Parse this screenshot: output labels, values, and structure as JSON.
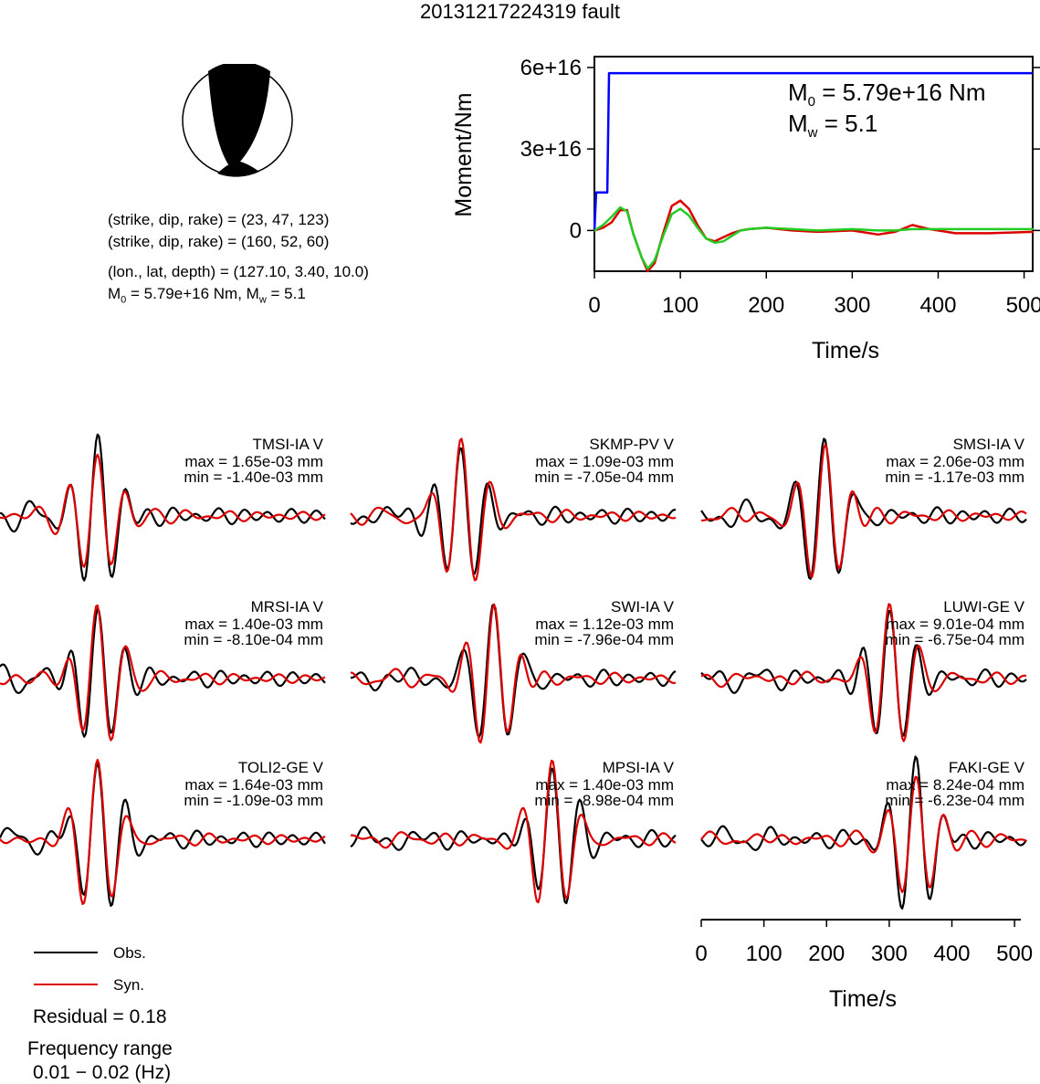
{
  "title": "20131217224319 fault",
  "mechanism": {
    "line1": "(strike, dip, rake) = (23, 47, 123)",
    "line2": "(strike, dip, rake) = (160, 52, 60)",
    "line3": "(lon., lat, depth) = (127.10, 3.40, 10.0)",
    "m0_prefix": "M",
    "m0_sub": "0",
    "m0_mid": " = 5.79e+16 Nm, M",
    "mw_sub": "w",
    "mw_tail": " = 5.1"
  },
  "moment_plot": {
    "ylabel": "Moment/Nm",
    "xlabel": "Time/s",
    "m0_label": "M",
    "m0_sub": "0",
    "m0_value": " = 5.79e+16 Nm",
    "mw_label": "M",
    "mw_sub": "w",
    "mw_value": " = 5.1",
    "colors": {
      "moment": "#0000ff",
      "stf_red": "#dd0000",
      "stf_green": "#22cc22"
    }
  },
  "chart_data": {
    "type": "line",
    "title": "20131217224319 fault",
    "moment_rate": {
      "xlabel": "Time/s",
      "ylabel": "Moment/Nm",
      "xlim": [
        0,
        510
      ],
      "ylim": [
        -1.5e+16,
        6.4e+16
      ],
      "xticks": [
        0,
        100,
        200,
        300,
        400,
        500
      ],
      "yticks": [
        0,
        3e+16,
        6e+16
      ],
      "ytick_labels": [
        "0",
        "3e+16",
        "6e+16"
      ],
      "series": [
        {
          "color": "#0000ff",
          "x": [
            0,
            2,
            4,
            15,
            17,
            510
          ],
          "y": [
            0,
            1.4e+16,
            1.4e+16,
            1.4e+16,
            5.79e+16,
            5.79e+16
          ]
        },
        {
          "color": "#dd0000",
          "x": [
            0,
            10,
            20,
            30,
            38,
            45,
            55,
            62,
            70,
            80,
            90,
            100,
            110,
            120,
            130,
            140,
            150,
            160,
            170,
            180,
            200,
            230,
            260,
            300,
            330,
            350,
            370,
            390,
            420,
            460,
            510
          ],
          "y": [
            0,
            1000000000000000.0,
            3000000000000000.0,
            7500000000000000.0,
            7500000000000000.0,
            -1000000000000000.0,
            -1e+16,
            -1.5e+16,
            -1.2e+16,
            -1000000000000000.0,
            9000000000000000.0,
            1.1e+16,
            8000000000000000.0,
            2000000000000000.0,
            -3000000000000000.0,
            -4000000000000000.0,
            -2500000000000000.0,
            -1000000000000000.0,
            0,
            500000000000000.0,
            1000000000000000.0,
            0,
            -500000000000000.0,
            0,
            -1500000000000000.0,
            -500000000000000.0,
            2000000000000000.0,
            500000000000000.0,
            -1000000000000000.0,
            -1000000000000000.0,
            -500000000000000.0
          ]
        },
        {
          "color": "#22cc22",
          "x": [
            0,
            10,
            20,
            30,
            38,
            45,
            55,
            62,
            70,
            80,
            90,
            100,
            110,
            120,
            130,
            140,
            150,
            160,
            170,
            180,
            200,
            230,
            260,
            300,
            330,
            350,
            370,
            390,
            420,
            460,
            510
          ],
          "y": [
            0,
            2000000000000000.0,
            5000000000000000.0,
            8500000000000000.0,
            7000000000000000.0,
            -1000000000000000.0,
            -1e+16,
            -1.4e+16,
            -1.1e+16,
            -2000000000000000.0,
            6000000000000000.0,
            8000000000000000.0,
            5500000000000000.0,
            1000000000000000.0,
            -3000000000000000.0,
            -4500000000000000.0,
            -4000000000000000.0,
            -2000000000000000.0,
            0,
            500000000000000.0,
            1000000000000000.0,
            500000000000000.0,
            0,
            500000000000000.0,
            0,
            0,
            500000000000000.0,
            500000000000000.0,
            500000000000000.0,
            500000000000000.0,
            500000000000000.0
          ]
        }
      ]
    },
    "waveforms": {
      "xlim": [
        0,
        510
      ],
      "xlabel": "Time/s",
      "xticks": [
        0,
        100,
        200,
        300,
        400,
        500
      ],
      "legend": [
        "Obs.",
        "Syn."
      ],
      "stations": [
        {
          "name": "TMSI-IA V",
          "max": "max = 1.65e-03 mm",
          "min": "min = -1.40e-03 mm"
        },
        {
          "name": "SKMP-PV V",
          "max": "max = 1.09e-03 mm",
          "min": "min = -7.05e-04 mm"
        },
        {
          "name": "SMSI-IA V",
          "max": "max = 2.06e-03 mm",
          "min": "min = -1.17e-03 mm"
        },
        {
          "name": "MRSI-IA V",
          "max": "max = 1.40e-03 mm",
          "min": "min = -8.10e-04 mm"
        },
        {
          "name": "SWI-IA V",
          "max": "max = 1.12e-03 mm",
          "min": "min = -7.96e-04 mm"
        },
        {
          "name": "LUWI-GE V",
          "max": "max = 9.01e-04 mm",
          "min": "min = -6.75e-04 mm"
        },
        {
          "name": "TOLI2-GE V",
          "max": "max = 1.64e-03 mm",
          "min": "min = -1.09e-03 mm"
        },
        {
          "name": "MPSI-IA V",
          "max": "max = 1.40e-03 mm",
          "min": "min = -8.98e-04 mm"
        },
        {
          "name": "FAKI-GE V",
          "max": "max = 8.24e-04 mm",
          "min": "min = -6.23e-04 mm"
        }
      ]
    }
  },
  "stations": [
    {
      "name": "TMSI-IA V",
      "max": "max = 1.65e-03 mm",
      "min": "min = -1.40e-03 mm"
    },
    {
      "name": "SKMP-PV V",
      "max": "max = 1.09e-03 mm",
      "min": "min = -7.05e-04 mm"
    },
    {
      "name": "SMSI-IA V",
      "max": "max = 2.06e-03 mm",
      "min": "min = -1.17e-03 mm"
    },
    {
      "name": "MRSI-IA V",
      "max": "max = 1.40e-03 mm",
      "min": "min = -8.10e-04 mm"
    },
    {
      "name": "SWI-IA V",
      "max": "max = 1.12e-03 mm",
      "min": "min = -7.96e-04 mm"
    },
    {
      "name": "LUWI-GE V",
      "max": "max = 9.01e-04 mm",
      "min": "min = -6.75e-04 mm"
    },
    {
      "name": "TOLI2-GE V",
      "max": "max = 1.64e-03 mm",
      "min": "min = -1.09e-03 mm"
    },
    {
      "name": "MPSI-IA V",
      "max": "max = 1.40e-03 mm",
      "min": "min = -8.98e-04 mm"
    },
    {
      "name": "FAKI-GE V",
      "max": "max = 8.24e-04 mm",
      "min": "min = -6.23e-04 mm"
    }
  ],
  "legend": {
    "obs": "Obs.",
    "syn": "Syn.",
    "obs_color": "#000000",
    "syn_color": "#dd0000"
  },
  "residual": "Residual = 0.18",
  "freq_label": "Frequency range",
  "freq_value": "0.01 − 0.02 (Hz)",
  "bottom_axis_label": "Time/s"
}
